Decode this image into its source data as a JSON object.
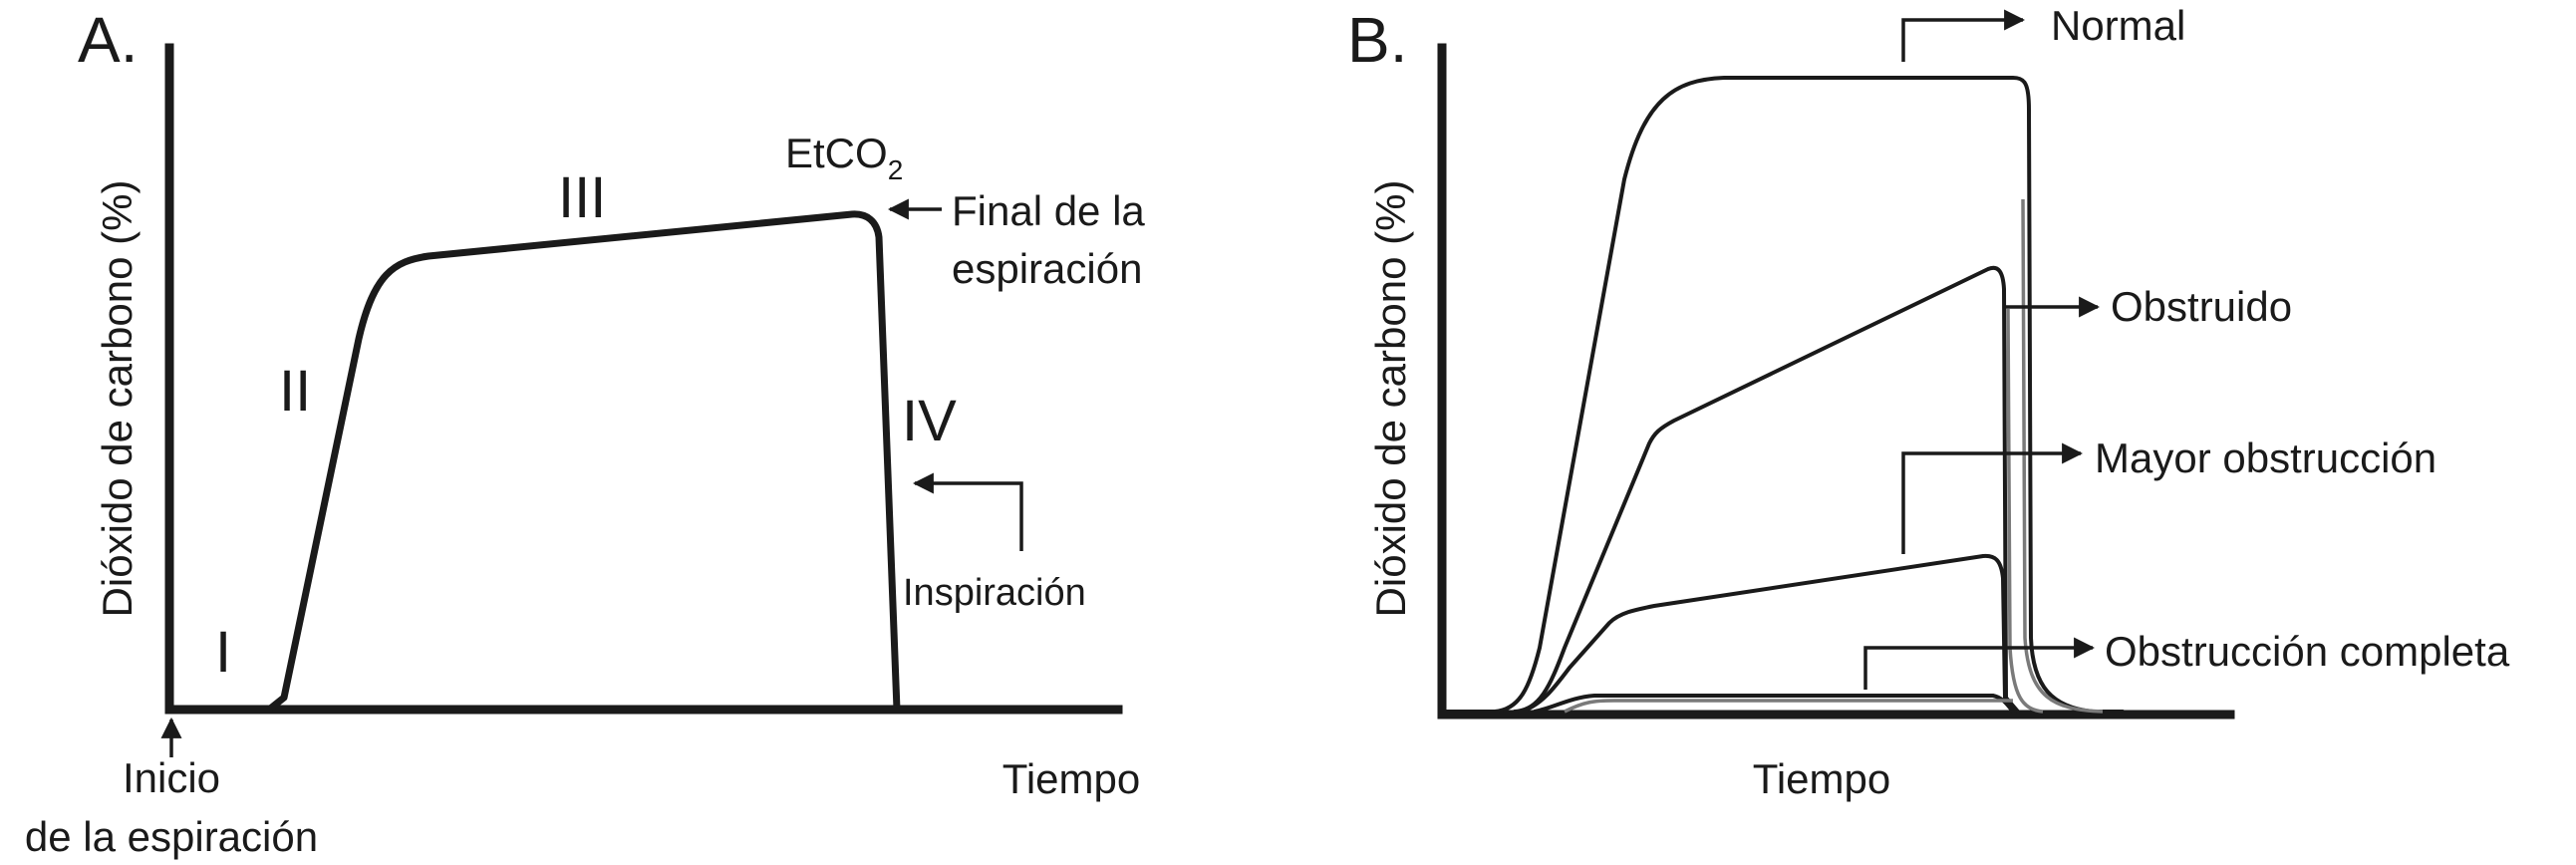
{
  "panel_a": {
    "letter": "A.",
    "y_axis_title": "Dióxido de carbono (%)",
    "x_axis_title": "Tiempo",
    "start_label_line1": "Inicio",
    "start_label_line2": "de la espiración",
    "phases": [
      "I",
      "II",
      "III",
      "IV"
    ],
    "etco2_main": "EtCO",
    "etco2_sub": "2",
    "end_label_line1": "Final de la",
    "end_label_line2": "espiración",
    "inspiration_label": "Inspiración"
  },
  "panel_b": {
    "letter": "B.",
    "y_axis_title": "Dióxido de carbono (%)",
    "x_axis_title": "Tiempo",
    "curve_labels": {
      "normal": "Normal",
      "obstruido": "Obstruido",
      "mayor": "Mayor obstrucción",
      "completa": "Obstrucción completa"
    }
  }
}
